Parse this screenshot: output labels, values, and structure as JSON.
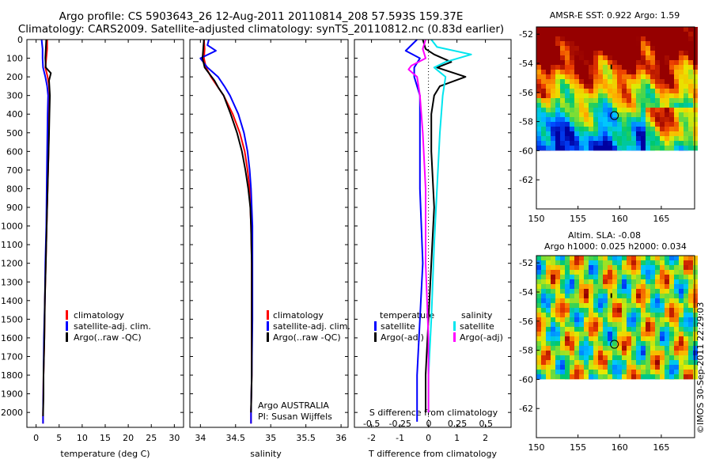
{
  "figure": {
    "title_line1": "Argo profile: CS 5903643_26 12-Aug-2011 20110814_208 57.593S 159.37E",
    "title_line2": "Climatology: CARS2009. Satellite-adjusted climatology: synTS_20110812.nc (0.83d earlier)",
    "watermark": "©IMOS 30-Sep-2011 22:29:03"
  },
  "chart_data": [
    {
      "id": "temperature",
      "type": "line",
      "xlabel": "temperature (deg C)",
      "ylabel": "",
      "xlim": [
        -2,
        32
      ],
      "ylim": [
        2080,
        0
      ],
      "xticks": [
        0,
        5,
        10,
        15,
        20,
        25,
        30
      ],
      "yticks": [
        0,
        100,
        200,
        300,
        400,
        500,
        600,
        700,
        800,
        900,
        1000,
        1100,
        1200,
        1300,
        1400,
        1500,
        1600,
        1700,
        1800,
        1900,
        2000
      ],
      "legend": [
        "climatology",
        "satellite-adj. clim.",
        "Argo(..raw -QC)"
      ],
      "legend_location": "lower-center",
      "series": [
        {
          "name": "climatology",
          "color": "#ff0000",
          "points": [
            [
              2.4,
              0
            ],
            [
              2.4,
              50
            ],
            [
              2.2,
              100
            ],
            [
              2.0,
              150
            ],
            [
              2.5,
              200
            ],
            [
              2.8,
              250
            ],
            [
              2.9,
              300
            ],
            [
              2.8,
              400
            ],
            [
              2.7,
              600
            ],
            [
              2.5,
              800
            ],
            [
              2.3,
              1000
            ],
            [
              2.1,
              1200
            ],
            [
              1.9,
              1400
            ],
            [
              1.8,
              1600
            ],
            [
              1.6,
              1800
            ],
            [
              1.5,
              2000
            ],
            [
              1.5,
              2060
            ]
          ]
        },
        {
          "name": "satellite-adj. clim.",
          "color": "#0000ff",
          "points": [
            [
              1.2,
              0
            ],
            [
              1.4,
              50
            ],
            [
              1.4,
              100
            ],
            [
              1.5,
              150
            ],
            [
              2.0,
              200
            ],
            [
              2.4,
              250
            ],
            [
              2.6,
              300
            ],
            [
              2.5,
              400
            ],
            [
              2.4,
              600
            ],
            [
              2.3,
              800
            ],
            [
              2.2,
              1000
            ],
            [
              2.0,
              1200
            ],
            [
              1.9,
              1400
            ],
            [
              1.7,
              1600
            ],
            [
              1.6,
              1800
            ],
            [
              1.5,
              2000
            ],
            [
              1.5,
              2060
            ]
          ]
        },
        {
          "name": "Argo(..raw -QC)",
          "color": "#000000",
          "points": [
            [
              2.2,
              0
            ],
            [
              2.1,
              50
            ],
            [
              2.0,
              100
            ],
            [
              2.1,
              150
            ],
            [
              3.2,
              180
            ],
            [
              2.8,
              220
            ],
            [
              3.0,
              300
            ],
            [
              2.9,
              400
            ],
            [
              2.8,
              500
            ],
            [
              2.6,
              700
            ],
            [
              2.4,
              900
            ],
            [
              2.3,
              1000
            ],
            [
              2.1,
              1200
            ],
            [
              1.9,
              1400
            ],
            [
              1.8,
              1600
            ],
            [
              1.6,
              1800
            ],
            [
              1.6,
              1900
            ],
            [
              1.5,
              2020
            ]
          ]
        }
      ]
    },
    {
      "id": "salinity",
      "type": "line",
      "xlabel": "salinity",
      "ylabel": "",
      "xlim": [
        33.85,
        36.1
      ],
      "ylim": [
        2080,
        0
      ],
      "xticks": [
        34,
        34.5,
        35,
        35.5,
        36
      ],
      "yticks": [],
      "legend": [
        "climatology",
        "satellite-adj. clim.",
        "Argo(..raw -QC)"
      ],
      "legend_location": "lower-right",
      "annotations": [
        "Argo AUSTRALIA",
        "PI: Susan Wijffels"
      ],
      "series": [
        {
          "name": "climatology",
          "color": "#ff0000",
          "points": [
            [
              34.05,
              0
            ],
            [
              34.06,
              50
            ],
            [
              34.05,
              100
            ],
            [
              34.08,
              150
            ],
            [
              34.15,
              200
            ],
            [
              34.24,
              250
            ],
            [
              34.33,
              300
            ],
            [
              34.46,
              400
            ],
            [
              34.56,
              500
            ],
            [
              34.63,
              600
            ],
            [
              34.67,
              700
            ],
            [
              34.7,
              800
            ],
            [
              34.72,
              1000
            ],
            [
              34.73,
              1200
            ],
            [
              34.73,
              1500
            ],
            [
              34.73,
              1800
            ],
            [
              34.72,
              2000
            ],
            [
              34.72,
              2060
            ]
          ]
        },
        {
          "name": "satellite-adj. clim.",
          "color": "#0000ff",
          "points": [
            [
              34.12,
              0
            ],
            [
              34.1,
              30
            ],
            [
              34.22,
              60
            ],
            [
              34.0,
              100
            ],
            [
              34.1,
              150
            ],
            [
              34.25,
              200
            ],
            [
              34.34,
              250
            ],
            [
              34.42,
              300
            ],
            [
              34.54,
              400
            ],
            [
              34.62,
              500
            ],
            [
              34.67,
              600
            ],
            [
              34.7,
              700
            ],
            [
              34.72,
              800
            ],
            [
              34.74,
              1000
            ],
            [
              34.74,
              1200
            ],
            [
              34.74,
              1500
            ],
            [
              34.73,
              1800
            ],
            [
              34.72,
              2000
            ],
            [
              34.72,
              2060
            ]
          ]
        },
        {
          "name": "Argo(..raw -QC)",
          "color": "#000000",
          "points": [
            [
              34.05,
              0
            ],
            [
              34.04,
              50
            ],
            [
              34.03,
              100
            ],
            [
              34.06,
              150
            ],
            [
              34.12,
              180
            ],
            [
              34.2,
              220
            ],
            [
              34.26,
              260
            ],
            [
              34.33,
              300
            ],
            [
              34.43,
              400
            ],
            [
              34.52,
              500
            ],
            [
              34.59,
              600
            ],
            [
              34.64,
              700
            ],
            [
              34.68,
              800
            ],
            [
              34.71,
              900
            ],
            [
              34.72,
              1000
            ],
            [
              34.73,
              1200
            ],
            [
              34.73,
              1500
            ],
            [
              34.73,
              1800
            ],
            [
              34.72,
              2000
            ]
          ]
        }
      ]
    },
    {
      "id": "difference",
      "type": "line",
      "xlabel": "T difference from climatology",
      "xlabel2": "S difference from climatology",
      "ylabel": "",
      "xlim": [
        -2.6,
        2.9
      ],
      "ylim": [
        2080,
        0
      ],
      "xticks": [
        -2,
        -1,
        0,
        1,
        2
      ],
      "xticks2": [
        -0.5,
        -0.25,
        0,
        0.25,
        0.5
      ],
      "yticks": [],
      "legend_headers": [
        "temperature",
        "salinity"
      ],
      "legend": [
        "satellite",
        "Argo(-adj)",
        "satellite",
        "Argo(-adj)"
      ],
      "legend_location": "lower-center",
      "series": [
        {
          "name": "satellite",
          "group": "temperature",
          "color": "#0000ff",
          "points": [
            [
              -0.4,
              0
            ],
            [
              -0.8,
              60
            ],
            [
              -0.3,
              100
            ],
            [
              -0.5,
              150
            ],
            [
              -0.5,
              200
            ],
            [
              -0.3,
              300
            ],
            [
              -0.3,
              500
            ],
            [
              -0.3,
              800
            ],
            [
              -0.2,
              1200
            ],
            [
              -0.3,
              1500
            ],
            [
              -0.4,
              1800
            ],
            [
              -0.4,
              2000
            ],
            [
              -0.4,
              2050
            ]
          ]
        },
        {
          "name": "Argo(-adj)",
          "group": "temperature",
          "color": "#000000",
          "points": [
            [
              -0.2,
              0
            ],
            [
              -0.1,
              50
            ],
            [
              0.2,
              80
            ],
            [
              0.8,
              120
            ],
            [
              0.3,
              150
            ],
            [
              1.3,
              200
            ],
            [
              0.4,
              250
            ],
            [
              0.2,
              300
            ],
            [
              0.1,
              400
            ],
            [
              0.1,
              600
            ],
            [
              0.2,
              900
            ],
            [
              0.1,
              1200
            ],
            [
              0.0,
              1500
            ],
            [
              -0.1,
              1800
            ],
            [
              -0.1,
              2000
            ]
          ]
        },
        {
          "name": "satellite",
          "group": "salinity",
          "color": "#00e5ee",
          "points": [
            [
              0.1,
              0
            ],
            [
              0.3,
              40
            ],
            [
              1.5,
              80
            ],
            [
              0.6,
              120
            ],
            [
              0.2,
              150
            ],
            [
              0.6,
              200
            ],
            [
              0.5,
              300
            ],
            [
              0.4,
              500
            ],
            [
              0.3,
              800
            ],
            [
              0.2,
              1100
            ],
            [
              0.1,
              1500
            ],
            [
              0.0,
              1800
            ],
            [
              0.0,
              2000
            ]
          ]
        },
        {
          "name": "Argo(-adj)",
          "group": "salinity",
          "color": "#ff00ff",
          "points": [
            [
              -0.1,
              0
            ],
            [
              -0.2,
              50
            ],
            [
              -0.1,
              100
            ],
            [
              -0.6,
              140
            ],
            [
              -0.7,
              160
            ],
            [
              -0.4,
              200
            ],
            [
              -0.3,
              300
            ],
            [
              -0.2,
              500
            ],
            [
              -0.1,
              800
            ],
            [
              -0.1,
              1200
            ],
            [
              0.0,
              1600
            ],
            [
              0.0,
              2000
            ]
          ]
        }
      ]
    },
    {
      "id": "sst_map",
      "type": "heatmap",
      "title": "AMSR-E SST: 0.922  Argo: 1.59",
      "xlim": [
        150,
        169
      ],
      "ylim": [
        -64,
        -51.5
      ],
      "xticks": [
        150,
        155,
        160,
        165
      ],
      "yticks": [
        -52,
        -54,
        -56,
        -58,
        -60,
        -62
      ],
      "coverage_to_lat": -60,
      "marker": {
        "lon": 159.37,
        "lat": -57.59
      },
      "track_tick": {
        "lon": 159.0,
        "lat": -54.3
      }
    },
    {
      "id": "sla_map",
      "type": "heatmap",
      "title": "Altim. SLA: -0.08",
      "subtitle": "Argo h1000: 0.025 h2000: 0.034",
      "xlim": [
        150,
        169
      ],
      "ylim": [
        -64,
        -51.5
      ],
      "xticks": [
        150,
        155,
        160,
        165
      ],
      "yticks": [
        -52,
        -54,
        -56,
        -58,
        -60,
        -62
      ],
      "coverage_to_lat": -60,
      "marker": {
        "lon": 159.37,
        "lat": -57.59
      },
      "track_tick": {
        "lon": 159.0,
        "lat": -54.3
      }
    }
  ]
}
